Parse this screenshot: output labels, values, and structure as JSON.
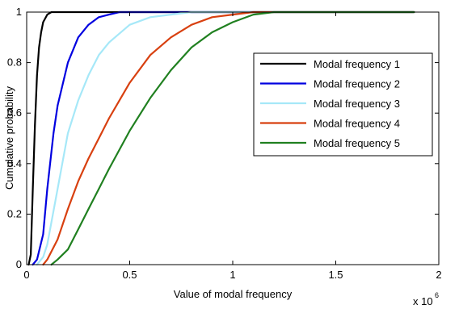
{
  "chart_data": {
    "type": "line",
    "xlabel": "Value of modal frequency",
    "ylabel": "Cumulative probability",
    "x_multiplier": "x 10",
    "x_multiplier_exponent": "6",
    "xlim": [
      0,
      2
    ],
    "ylim": [
      0,
      1
    ],
    "x_ticks": [
      0,
      0.5,
      1,
      1.5,
      2
    ],
    "x_tick_labels": [
      "0",
      "0.5",
      "1",
      "1.5",
      "2"
    ],
    "y_ticks": [
      0,
      0.2,
      0.4,
      0.6,
      0.8,
      1
    ],
    "y_tick_labels": [
      "0",
      "0.2",
      "0.4",
      "0.6",
      "0.8",
      "1"
    ],
    "grid": false,
    "legend_position": "right",
    "series": [
      {
        "name": "Modal frequency 1",
        "color": "#000000",
        "x": [
          0.01,
          0.02,
          0.03,
          0.04,
          0.05,
          0.06,
          0.07,
          0.08,
          0.1,
          0.12,
          0.15,
          1.88
        ],
        "y": [
          0,
          0.04,
          0.3,
          0.55,
          0.75,
          0.86,
          0.92,
          0.96,
          0.99,
          1,
          1,
          1
        ]
      },
      {
        "name": "Modal frequency 2",
        "color": "#0000e0",
        "x": [
          0.03,
          0.05,
          0.08,
          0.1,
          0.13,
          0.15,
          0.2,
          0.25,
          0.3,
          0.35,
          0.4,
          0.45,
          0.5,
          1.88
        ],
        "y": [
          0,
          0.02,
          0.12,
          0.3,
          0.52,
          0.63,
          0.8,
          0.9,
          0.95,
          0.98,
          0.99,
          1,
          1,
          1
        ]
      },
      {
        "name": "Modal frequency 3",
        "color": "#a6e8f8",
        "x": [
          0.05,
          0.08,
          0.1,
          0.15,
          0.2,
          0.25,
          0.3,
          0.35,
          0.4,
          0.5,
          0.6,
          0.7,
          0.8,
          1.88
        ],
        "y": [
          0,
          0.03,
          0.08,
          0.3,
          0.52,
          0.65,
          0.75,
          0.83,
          0.88,
          0.95,
          0.98,
          0.99,
          1,
          1
        ]
      },
      {
        "name": "Modal frequency 4",
        "color": "#d84010",
        "x": [
          0.08,
          0.1,
          0.15,
          0.2,
          0.25,
          0.3,
          0.35,
          0.4,
          0.5,
          0.6,
          0.7,
          0.8,
          0.9,
          1,
          1.1,
          1.88
        ],
        "y": [
          0,
          0.02,
          0.1,
          0.22,
          0.33,
          0.42,
          0.5,
          0.58,
          0.72,
          0.83,
          0.9,
          0.95,
          0.98,
          0.99,
          1,
          1
        ]
      },
      {
        "name": "Modal frequency 5",
        "color": "#208020",
        "x": [
          0.12,
          0.15,
          0.2,
          0.25,
          0.3,
          0.35,
          0.4,
          0.5,
          0.6,
          0.7,
          0.8,
          0.9,
          1,
          1.1,
          1.2,
          1.88
        ],
        "y": [
          0,
          0.02,
          0.06,
          0.14,
          0.22,
          0.3,
          0.38,
          0.53,
          0.66,
          0.77,
          0.86,
          0.92,
          0.96,
          0.99,
          1,
          1
        ]
      }
    ]
  }
}
